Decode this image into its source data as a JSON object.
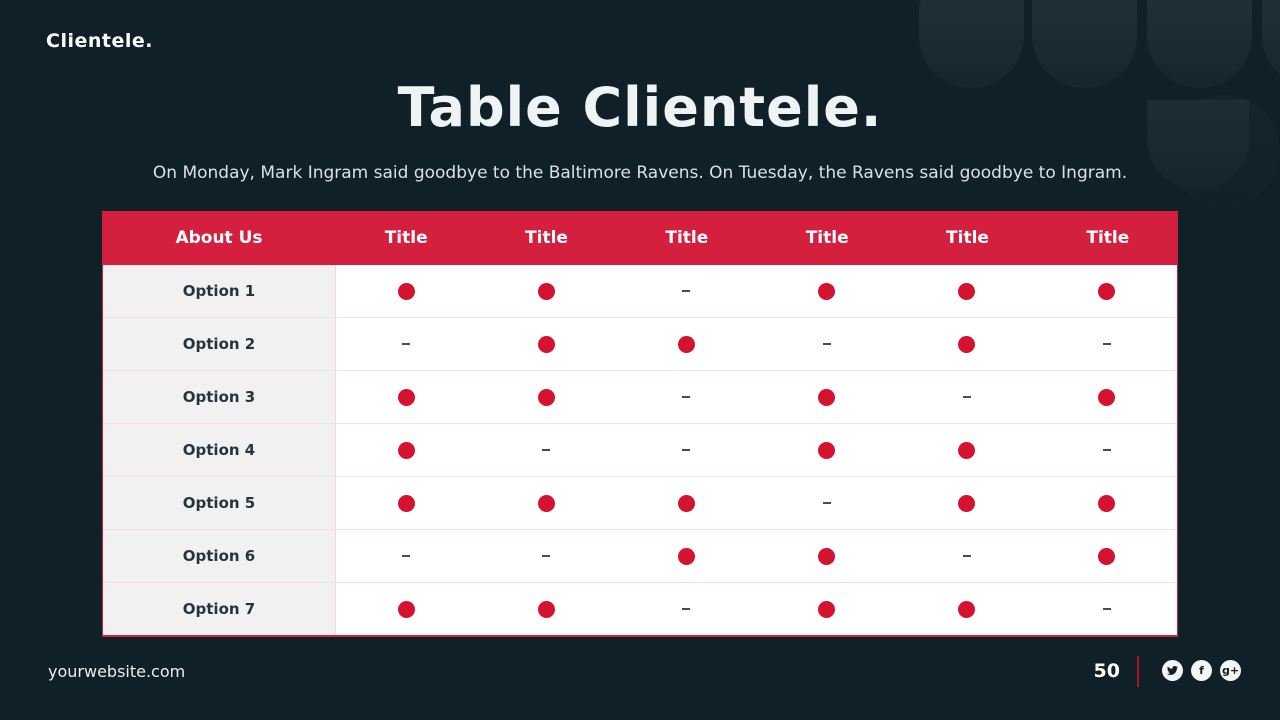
{
  "logo": "Clientele.",
  "header": {
    "title": "Table Clientele.",
    "subtitle": "On Monday, Mark Ingram said goodbye to the Baltimore Ravens. On Tuesday, the Ravens said goodbye to Ingram."
  },
  "table": {
    "columns": [
      "About Us",
      "Title",
      "Title",
      "Title",
      "Title",
      "Title",
      "Title"
    ],
    "rows": [
      {
        "label": "Option 1",
        "cells": [
          "dot",
          "dot",
          "dash",
          "dot",
          "dot",
          "dot"
        ]
      },
      {
        "label": "Option 2",
        "cells": [
          "dash",
          "dot",
          "dot",
          "dash",
          "dot",
          "dash"
        ]
      },
      {
        "label": "Option 3",
        "cells": [
          "dot",
          "dot",
          "dash",
          "dot",
          "dash",
          "dot"
        ]
      },
      {
        "label": "Option 4",
        "cells": [
          "dot",
          "dash",
          "dash",
          "dot",
          "dot",
          "dash"
        ]
      },
      {
        "label": "Option 5",
        "cells": [
          "dot",
          "dot",
          "dot",
          "dash",
          "dot",
          "dot"
        ]
      },
      {
        "label": "Option 6",
        "cells": [
          "dash",
          "dash",
          "dot",
          "dot",
          "dash",
          "dot"
        ]
      },
      {
        "label": "Option 7",
        "cells": [
          "dot",
          "dot",
          "dash",
          "dot",
          "dot",
          "dash"
        ]
      }
    ]
  },
  "footer": {
    "website": "yourwebsite.com",
    "page_number": "50",
    "social": [
      {
        "name": "twitter-icon",
        "glyph": "twitter"
      },
      {
        "name": "facebook-icon",
        "glyph": "f"
      },
      {
        "name": "googleplus-icon",
        "glyph": "g+"
      }
    ]
  },
  "colors": {
    "background": "#0f2029",
    "accent_red": "#d41f3e",
    "dot_red": "#d31330",
    "label_column_bg": "#f2f1f1"
  }
}
